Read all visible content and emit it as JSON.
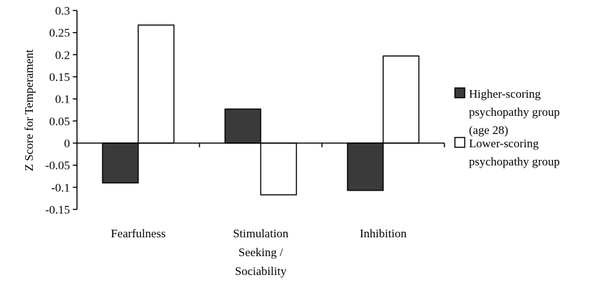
{
  "chart_data": {
    "type": "bar",
    "categories": [
      [
        "Fearfulness"
      ],
      [
        "Stimulation",
        "Seeking /",
        "Sociability"
      ],
      [
        "Inhibition"
      ]
    ],
    "series": [
      {
        "name": [
          "Higher-scoring",
          "psychopathy group",
          "(age 28)"
        ],
        "values": [
          -0.09,
          0.077,
          -0.107
        ],
        "color": "#3a3a3a"
      },
      {
        "name": [
          "Lower-scoring",
          "psychopathy group"
        ],
        "values": [
          0.267,
          -0.117,
          0.197
        ],
        "color": "#ffffff"
      }
    ],
    "ylabel": "Z Score for Temperament",
    "ylim": [
      -0.15,
      0.3
    ],
    "yticks": [
      "-0.15",
      "-0.1",
      "-0.05",
      "0",
      "0.05",
      "0.1",
      "0.15",
      "0.2",
      "0.25",
      "0.3"
    ],
    "grid": false,
    "legend": "right"
  }
}
